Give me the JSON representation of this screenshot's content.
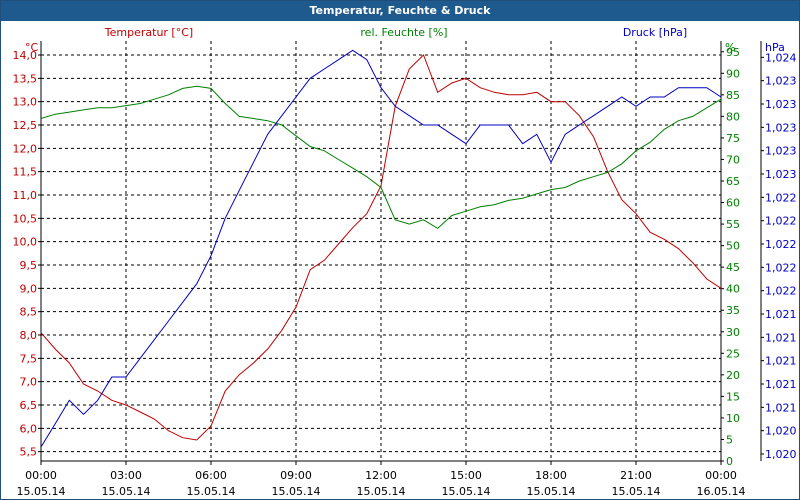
{
  "window": {
    "title": "Temperatur, Feuchte & Druck"
  },
  "colors": {
    "temperature": "#c00000",
    "humidity": "#008000",
    "pressure": "#0000c0",
    "grid": "#000000",
    "axis": "#000000"
  },
  "chart_data": {
    "type": "line",
    "title": "Temperatur, Feuchte & Druck",
    "grid": true,
    "x_ticks": [
      {
        "time": "00:00",
        "date": "15.05.14"
      },
      {
        "time": "03:00",
        "date": "15.05.14"
      },
      {
        "time": "06:00",
        "date": "15.05.14"
      },
      {
        "time": "09:00",
        "date": "15.05.14"
      },
      {
        "time": "12:00",
        "date": "15.05.14"
      },
      {
        "time": "15:00",
        "date": "15.05.14"
      },
      {
        "time": "18:00",
        "date": "15.05.14"
      },
      {
        "time": "21:00",
        "date": "15.05.14"
      },
      {
        "time": "00:00",
        "date": "16.05.14"
      }
    ],
    "x_range_hours": [
      0,
      24
    ],
    "axes": {
      "temperature": {
        "label": "Temperatur [°C]",
        "unit": "°C",
        "range": [
          5.3,
          14.3
        ],
        "ticks": [
          "5,5",
          "6,0",
          "6,5",
          "7,0",
          "7,5",
          "8,0",
          "8,5",
          "9,0",
          "9,5",
          "10,0",
          "10,5",
          "11,0",
          "11,5",
          "12,0",
          "12,5",
          "13,0",
          "13,5",
          "14,0"
        ]
      },
      "humidity": {
        "label": "rel. Feuchte [%]",
        "unit": "%",
        "range": [
          0,
          97.5
        ],
        "ticks": [
          "0",
          "5",
          "10",
          "15",
          "20",
          "25",
          "30",
          "35",
          "40",
          "45",
          "50",
          "55",
          "60",
          "65",
          "70",
          "75",
          "80",
          "85",
          "90",
          "95"
        ]
      },
      "pressure": {
        "label": "Druck [hPa]",
        "unit": "hPa",
        "range": [
          1.0197,
          1.0242
        ],
        "ticks": [
          "1,020",
          "1,020",
          "1,021",
          "1,021",
          "1,021",
          "1,021",
          "1,021",
          "1,022",
          "1,022",
          "1,022",
          "1,022",
          "1,022",
          "1,023",
          "1,023",
          "1,023",
          "1,023",
          "1,023",
          "1,024"
        ]
      }
    },
    "series": [
      {
        "name": "Temperatur [°C]",
        "axis": "temperature",
        "x": [
          0,
          0.5,
          1,
          1.5,
          2,
          2.5,
          3,
          3.5,
          4,
          4.5,
          5,
          5.5,
          6,
          6.5,
          7,
          7.5,
          8,
          8.5,
          9,
          9.5,
          10,
          10.5,
          11,
          11.5,
          12,
          12.5,
          13,
          13.5,
          14,
          14.5,
          15,
          15.5,
          16,
          16.5,
          17,
          17.5,
          18,
          18.5,
          19,
          19.5,
          20,
          20.5,
          21,
          21.5,
          22,
          22.5,
          23,
          23.5,
          24
        ],
        "values": [
          8.05,
          7.7,
          7.4,
          6.95,
          6.8,
          6.6,
          6.5,
          6.35,
          6.2,
          5.95,
          5.8,
          5.75,
          6.05,
          6.8,
          7.15,
          7.4,
          7.7,
          8.1,
          8.6,
          9.4,
          9.6,
          9.95,
          10.3,
          10.6,
          11.2,
          12.9,
          13.7,
          14.0,
          13.2,
          13.4,
          13.5,
          13.3,
          13.2,
          13.15,
          13.15,
          13.2,
          13.0,
          13.0,
          12.7,
          12.25,
          11.5,
          10.9,
          10.6,
          10.2,
          10.05,
          9.85,
          9.55,
          9.2,
          9.0
        ]
      },
      {
        "name": "rel. Feuchte [%]",
        "axis": "humidity",
        "x": [
          0,
          0.5,
          1,
          1.5,
          2,
          2.5,
          3,
          3.5,
          4,
          4.5,
          5,
          5.5,
          6,
          6.5,
          7,
          7.5,
          8,
          8.5,
          9,
          9.5,
          10,
          10.5,
          11,
          11.5,
          12,
          12.5,
          13,
          13.5,
          14,
          14.5,
          15,
          15.5,
          16,
          16.5,
          17,
          17.5,
          18,
          18.5,
          19,
          19.5,
          20,
          20.5,
          21,
          21.5,
          22,
          22.5,
          23,
          23.5,
          24
        ],
        "values": [
          79.5,
          80.5,
          81,
          81.5,
          82,
          82,
          82.5,
          83,
          84,
          85,
          86.5,
          87,
          86.5,
          83,
          80,
          79.5,
          79,
          78,
          75.5,
          73,
          72,
          70,
          68,
          66,
          63.5,
          56,
          55,
          56,
          54,
          57,
          58,
          59,
          59.5,
          60.5,
          61,
          62,
          63,
          63.5,
          65,
          66,
          67,
          69,
          72,
          74,
          77,
          79,
          80,
          82,
          84
        ]
      },
      {
        "name": "Druck [hPa]",
        "axis": "pressure",
        "x": [
          0,
          0.5,
          1,
          1.5,
          2,
          2.5,
          3,
          3.5,
          4,
          4.5,
          5,
          5.5,
          6,
          6.5,
          7,
          7.5,
          8,
          8.5,
          9,
          9.5,
          10,
          10.5,
          11,
          11.5,
          12,
          12.5,
          13,
          13.5,
          14,
          14.5,
          15,
          15.5,
          16,
          16.5,
          17,
          17.5,
          18,
          18.5,
          19,
          19.5,
          20,
          20.5,
          21,
          21.5,
          22,
          22.5,
          23,
          23.5,
          24
        ],
        "values": [
          1.01985,
          1.0201,
          1.02035,
          1.0202,
          1.02035,
          1.0206,
          1.0206,
          1.0208,
          1.021,
          1.0212,
          1.0214,
          1.0216,
          1.0219,
          1.0223,
          1.0226,
          1.0229,
          1.0232,
          1.0234,
          1.0236,
          1.0238,
          1.0239,
          1.024,
          1.0241,
          1.024,
          1.0237,
          1.0235,
          1.0234,
          1.0233,
          1.0233,
          1.0232,
          1.0231,
          1.0233,
          1.0233,
          1.0233,
          1.0231,
          1.0232,
          1.0229,
          1.0232,
          1.0233,
          1.0234,
          1.0235,
          1.0236,
          1.0235,
          1.0236,
          1.0236,
          1.0237,
          1.0237,
          1.0237,
          1.0236
        ]
      }
    ]
  }
}
